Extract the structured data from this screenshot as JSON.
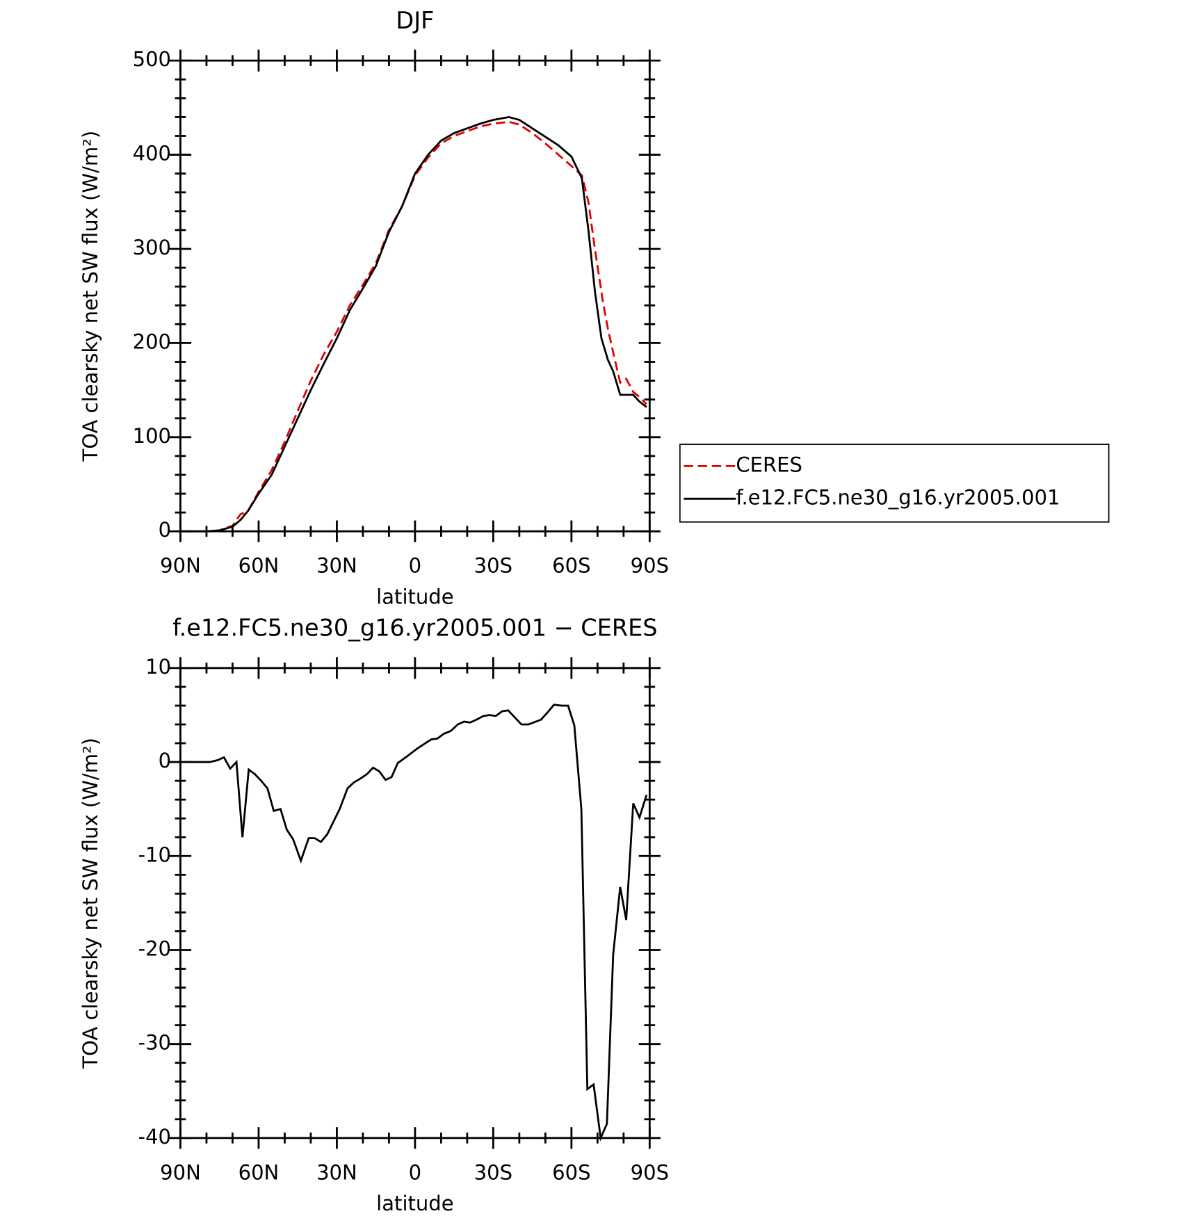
{
  "chart_data": [
    {
      "type": "line",
      "title": "DJF",
      "xlabel": "latitude",
      "ylabel": "TOA clearsky net SW flux (W/m²)",
      "xlim": [
        90,
        -90
      ],
      "xticks": [
        {
          "value": 90,
          "label": "90N"
        },
        {
          "value": 60,
          "label": "60N"
        },
        {
          "value": 30,
          "label": "30N"
        },
        0,
        {
          "value": -30,
          "label": "30S"
        },
        {
          "value": -60,
          "label": "60S"
        },
        {
          "value": -90,
          "label": "90S"
        }
      ],
      "ylim": [
        0,
        500
      ],
      "yticks": [
        0,
        100,
        200,
        300,
        400,
        500
      ],
      "legend": "right",
      "series": [
        {
          "name": "CERES",
          "color": "#e00000",
          "dash": true,
          "x": [
            88,
            80,
            75,
            70,
            67,
            64,
            60,
            55,
            50,
            45,
            40,
            35,
            30,
            25,
            20,
            15,
            10,
            5,
            0,
            -5,
            -10,
            -15,
            -20,
            -25,
            -30,
            -36,
            -40,
            -45,
            -50,
            -55,
            -60,
            -64,
            -66.5,
            -69,
            -72,
            -74,
            -76,
            -78.7,
            -81,
            -83.7,
            -86,
            -88.8
          ],
          "values": [
            0,
            0,
            1,
            6,
            18,
            22,
            42,
            65,
            95,
            128,
            160,
            188,
            212,
            240,
            262,
            285,
            320,
            345,
            378,
            397,
            412,
            420,
            425,
            430,
            433,
            435,
            432,
            423,
            412,
            400,
            388,
            378,
            350,
            300,
            245,
            215,
            190,
            158,
            162,
            148,
            143,
            135
          ]
        },
        {
          "name": "f.e12.FC5.ne30_g16.yr2005.001",
          "color": "#000000",
          "dash": false,
          "x": [
            88,
            80,
            75,
            70,
            67,
            64,
            60,
            55,
            50,
            45,
            40,
            35,
            30,
            25,
            20,
            15,
            10,
            5,
            0,
            -5,
            -10,
            -15,
            -20,
            -25,
            -30,
            -36,
            -40,
            -45,
            -50,
            -55,
            -60,
            -64,
            -66.5,
            -69,
            -71.5,
            -74,
            -76,
            -78.7,
            -83.7,
            -86,
            -88.8
          ],
          "values": [
            0,
            0,
            1,
            5,
            12,
            22,
            40,
            60,
            90,
            120,
            150,
            178,
            205,
            235,
            258,
            282,
            318,
            345,
            380,
            400,
            415,
            423,
            428,
            433,
            437,
            440,
            437,
            428,
            419,
            410,
            398,
            375,
            320,
            255,
            205,
            182,
            170,
            145,
            145,
            138,
            132
          ]
        }
      ]
    },
    {
      "type": "line",
      "title": "f.e12.FC5.ne30_g16.yr2005.001 − CERES",
      "xlabel": "latitude",
      "ylabel": "TOA clearsky net SW flux (W/m²)",
      "xlim": [
        90,
        -90
      ],
      "xticks": [
        {
          "value": 90,
          "label": "90N"
        },
        {
          "value": 60,
          "label": "60N"
        },
        {
          "value": 30,
          "label": "30N"
        },
        0,
        {
          "value": -30,
          "label": "30S"
        },
        {
          "value": -60,
          "label": "60S"
        },
        {
          "value": -90,
          "label": "90S"
        }
      ],
      "ylim": [
        -40,
        10
      ],
      "yticks": [
        -40,
        -30,
        -20,
        -10,
        0,
        10
      ],
      "series": [
        {
          "color": "#000000",
          "dash": false,
          "x": [
            88.5,
            78.7,
            75.7,
            73.3,
            70.9,
            68.5,
            66.2,
            63.8,
            61.4,
            59.0,
            56.6,
            54.2,
            51.6,
            49.2,
            46.8,
            43.8,
            40.8,
            38.5,
            36.1,
            33.7,
            28.9,
            25.9,
            23.6,
            21.2,
            18.5,
            16.1,
            13.7,
            11.3,
            9.0,
            6.6,
            3.6,
            1.2,
            -1.2,
            -6.2,
            -8.6,
            -11.0,
            -13.7,
            -16.4,
            -18.8,
            -21.1,
            -23.5,
            -26.2,
            -28.6,
            -31.0,
            -33.4,
            -35.7,
            -40.8,
            -43.5,
            -48.3,
            -50.9,
            -53.3,
            -56.3,
            -58.7,
            -61.1,
            -63.8,
            -66.1,
            -68.5,
            -71.2,
            -73.6,
            -76.0,
            -78.7,
            -81.0,
            -83.7,
            -86.1,
            -88.8
          ],
          "values": [
            0,
            0,
            0.2,
            0.5,
            -0.7,
            0,
            -8,
            -0.8,
            -1.3,
            -2,
            -2.8,
            -5.2,
            -5,
            -7.2,
            -8.2,
            -10.5,
            -8.1,
            -8.1,
            -8.5,
            -7.7,
            -5,
            -2.8,
            -2.2,
            -1.8,
            -1.3,
            -0.6,
            -1,
            -1.9,
            -1.6,
            -0.1,
            0.5,
            1,
            1.5,
            2.4,
            2.5,
            3,
            3.3,
            4,
            4.3,
            4.2,
            4.5,
            4.9,
            5,
            4.9,
            5.4,
            5.5,
            4,
            4,
            4.5,
            5.3,
            6.1,
            6,
            6,
            3.9,
            -5,
            -34.8,
            -34.3,
            -40,
            -38.5,
            -20.5,
            -13.3,
            -16.8,
            -4.4,
            -5.9,
            -3.5
          ]
        }
      ]
    }
  ]
}
